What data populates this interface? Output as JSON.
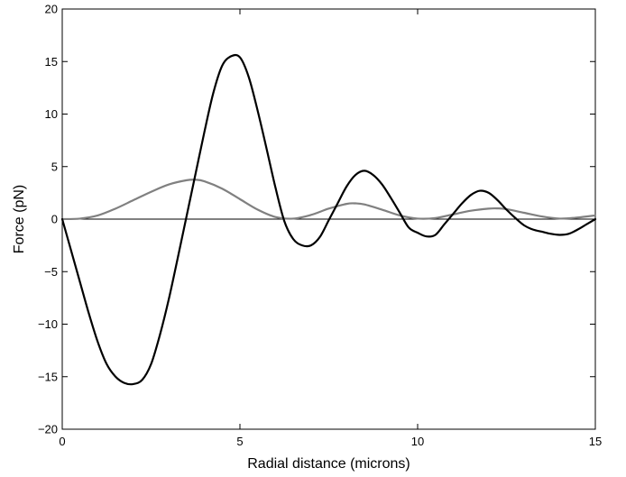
{
  "chart_data": {
    "type": "line",
    "title": "",
    "xlabel": "Radial distance (microns)",
    "ylabel": "Force (pN)",
    "xlim": [
      0,
      15
    ],
    "ylim": [
      -20,
      20
    ],
    "xticks": [
      0,
      5,
      10,
      15
    ],
    "yticks": [
      -20,
      -15,
      -10,
      -5,
      0,
      5,
      10,
      15,
      20
    ],
    "xtick_labels": [
      "0",
      "5",
      "10",
      "15"
    ],
    "ytick_labels": [
      "−20",
      "−15",
      "−10",
      "−5",
      "0",
      "5",
      "10",
      "15",
      "20"
    ],
    "grid": false,
    "legend": "none",
    "reference_line_y": 0,
    "series": [
      {
        "color": "#000000",
        "x": [
          0,
          0.25,
          0.5,
          0.75,
          1.0,
          1.25,
          1.5,
          1.75,
          2.0,
          2.25,
          2.5,
          2.75,
          3.0,
          3.25,
          3.5,
          3.75,
          4.0,
          4.25,
          4.5,
          4.75,
          5.0,
          5.25,
          5.5,
          5.75,
          6.0,
          6.25,
          6.5,
          6.75,
          7.0,
          7.25,
          7.5,
          7.75,
          8.0,
          8.25,
          8.5,
          8.75,
          9.0,
          9.25,
          9.5,
          9.75,
          10.0,
          10.25,
          10.5,
          10.75,
          11.0,
          11.25,
          11.5,
          11.75,
          12.0,
          12.25,
          12.5,
          12.75,
          13.0,
          13.25,
          13.5,
          13.75,
          14.0,
          14.25,
          14.5,
          14.75,
          15.0
        ],
        "y": [
          0,
          -3.0,
          -6.0,
          -9.0,
          -11.7,
          -13.8,
          -15.0,
          -15.6,
          -15.7,
          -15.3,
          -13.8,
          -11.0,
          -7.6,
          -3.7,
          0.3,
          4.3,
          8.3,
          12.0,
          14.6,
          15.5,
          15.4,
          13.5,
          10.3,
          6.7,
          3.0,
          -0.2,
          -1.9,
          -2.5,
          -2.5,
          -1.7,
          -0.1,
          1.5,
          3.1,
          4.2,
          4.6,
          4.2,
          3.3,
          2.0,
          0.6,
          -0.8,
          -1.3,
          -1.65,
          -1.5,
          -0.5,
          0.5,
          1.5,
          2.3,
          2.7,
          2.5,
          1.8,
          0.9,
          0.1,
          -0.6,
          -1.0,
          -1.2,
          -1.4,
          -1.5,
          -1.4,
          -1.0,
          -0.5,
          0.0
        ]
      },
      {
        "color": "#808080",
        "x": [
          0,
          0.5,
          1.0,
          1.5,
          2.0,
          2.5,
          3.0,
          3.5,
          3.75,
          4.0,
          4.5,
          5.0,
          5.5,
          6.0,
          6.5,
          7.0,
          7.5,
          8.0,
          8.25,
          8.5,
          9.0,
          9.5,
          10.0,
          10.5,
          11.0,
          11.5,
          12.0,
          12.25,
          12.5,
          13.0,
          13.5,
          14.0,
          14.5,
          15.0
        ],
        "y": [
          0,
          0.05,
          0.35,
          1.0,
          1.8,
          2.6,
          3.3,
          3.7,
          3.75,
          3.6,
          2.9,
          1.9,
          0.9,
          0.2,
          0.05,
          0.4,
          1.0,
          1.45,
          1.5,
          1.4,
          0.9,
          0.35,
          0.05,
          0.1,
          0.45,
          0.8,
          1.0,
          1.02,
          0.95,
          0.6,
          0.25,
          0.05,
          0.15,
          0.35
        ]
      }
    ]
  }
}
